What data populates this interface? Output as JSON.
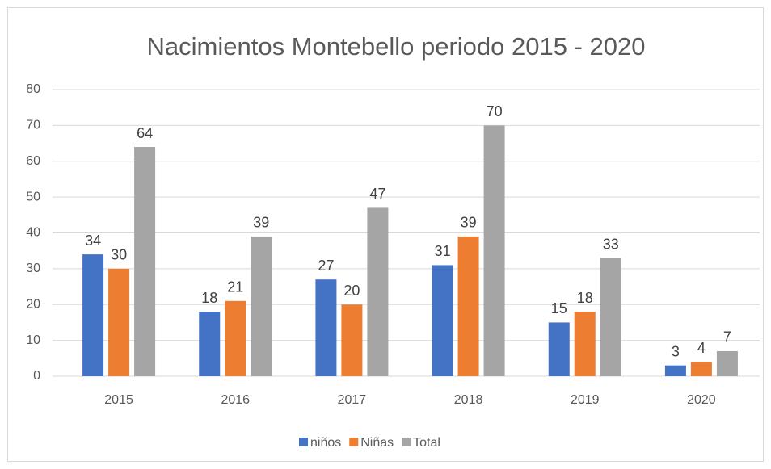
{
  "chart_data": {
    "type": "bar",
    "title": "Nacimientos Montebello periodo 2015 - 2020",
    "categories": [
      "2015",
      "2016",
      "2017",
      "2018",
      "2019",
      "2020"
    ],
    "series": [
      {
        "name": "niños",
        "color": "#4472c4",
        "values": [
          34,
          18,
          27,
          31,
          15,
          3
        ]
      },
      {
        "name": "Niñas",
        "color": "#ed7d31",
        "values": [
          30,
          21,
          20,
          39,
          18,
          4
        ]
      },
      {
        "name": "Total",
        "color": "#a5a5a5",
        "values": [
          64,
          39,
          47,
          70,
          33,
          7
        ]
      }
    ],
    "ylim": [
      0,
      80
    ],
    "yticks": [
      0,
      10,
      20,
      30,
      40,
      50,
      60,
      70,
      80
    ],
    "grid": true,
    "legend": "bottom"
  }
}
